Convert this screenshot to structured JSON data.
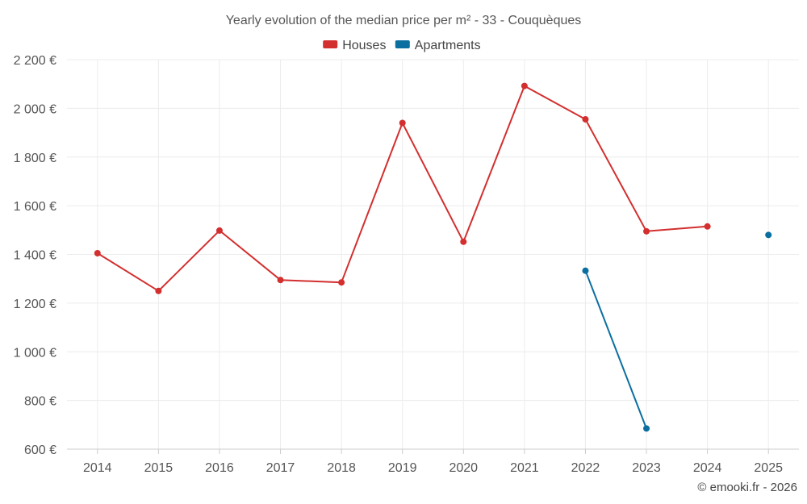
{
  "chart_data": {
    "type": "line",
    "title": "Yearly evolution of the median price per m² - 33 - Couquèques",
    "categories": [
      "2014",
      "2015",
      "2016",
      "2017",
      "2018",
      "2019",
      "2020",
      "2021",
      "2022",
      "2023",
      "2024",
      "2025"
    ],
    "series": [
      {
        "name": "Houses",
        "color": "#d32f2f",
        "values": [
          1405,
          1250,
          1498,
          1295,
          1285,
          1940,
          1452,
          2092,
          1955,
          1495,
          1515,
          null
        ]
      },
      {
        "name": "Apartments",
        "color": "#0a6ea0",
        "values": [
          null,
          null,
          null,
          null,
          null,
          null,
          null,
          null,
          1333,
          685,
          null,
          1480
        ]
      }
    ],
    "ylim": [
      600,
      2200
    ],
    "yticks": [
      600,
      800,
      1000,
      1200,
      1400,
      1600,
      1800,
      2000,
      2200
    ],
    "ytick_labels": [
      "600 €",
      "800 €",
      "1 000 €",
      "1 200 €",
      "1 400 €",
      "1 600 €",
      "1 800 €",
      "2 000 €",
      "2 200 €"
    ],
    "grid": true,
    "legend": "top-center"
  },
  "credit": "© emooki.fr - 2026"
}
